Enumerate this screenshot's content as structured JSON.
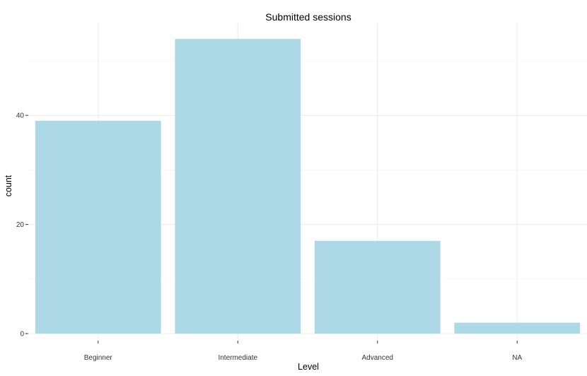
{
  "chart_data": {
    "type": "bar",
    "title": "Submitted sessions",
    "xlabel": "Level",
    "ylabel": "count",
    "categories": [
      "Beginner",
      "Intermediate",
      "Advanced",
      "NA"
    ],
    "values": [
      39,
      54,
      17,
      2
    ],
    "ylim": [
      0,
      56.7
    ],
    "yticks": [
      0,
      20,
      40
    ],
    "ytick_labels": [
      "0",
      "20",
      "40"
    ],
    "grid": true,
    "legend": "none",
    "colors": {
      "bar": "#add8e6",
      "grid_major": "#ebebeb",
      "grid_minor": "#f7f7f7",
      "text": "#000000",
      "tick_text": "#333333"
    }
  }
}
